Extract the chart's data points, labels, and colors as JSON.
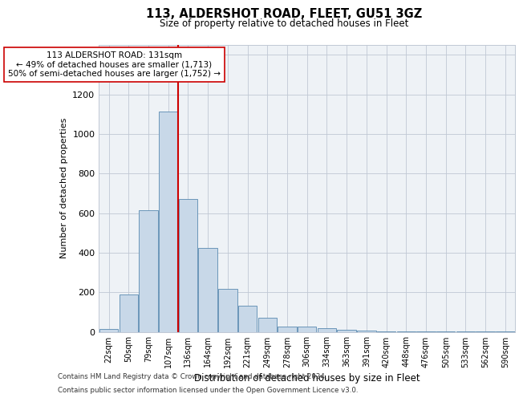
{
  "title1": "113, ALDERSHOT ROAD, FLEET, GU51 3GZ",
  "title2": "Size of property relative to detached houses in Fleet",
  "xlabel": "Distribution of detached houses by size in Fleet",
  "ylabel": "Number of detached properties",
  "categories": [
    "22sqm",
    "50sqm",
    "79sqm",
    "107sqm",
    "136sqm",
    "164sqm",
    "192sqm",
    "221sqm",
    "249sqm",
    "278sqm",
    "306sqm",
    "334sqm",
    "363sqm",
    "391sqm",
    "420sqm",
    "448sqm",
    "476sqm",
    "505sqm",
    "533sqm",
    "562sqm",
    "590sqm"
  ],
  "values": [
    15,
    190,
    615,
    1115,
    670,
    425,
    215,
    130,
    70,
    25,
    25,
    20,
    10,
    6,
    3,
    2,
    1,
    1,
    1,
    1,
    1
  ],
  "bar_color": "#c8d8e8",
  "bar_edge_color": "#5a8ab0",
  "vline_color": "#cc0000",
  "vline_x_idx": 3.5,
  "annotation_line1": "113 ALDERSHOT ROAD: 131sqm",
  "annotation_line2": "← 49% of detached houses are smaller (1,713)",
  "annotation_line3": "50% of semi-detached houses are larger (1,752) →",
  "annotation_box_color": "#ffffff",
  "annotation_box_edge": "#cc0000",
  "ylim": [
    0,
    1450
  ],
  "yticks": [
    0,
    200,
    400,
    600,
    800,
    1000,
    1200,
    1400
  ],
  "footnote1": "Contains HM Land Registry data © Crown copyright and database right 2024.",
  "footnote2": "Contains public sector information licensed under the Open Government Licence v3.0.",
  "plot_bg_color": "#eef2f6"
}
